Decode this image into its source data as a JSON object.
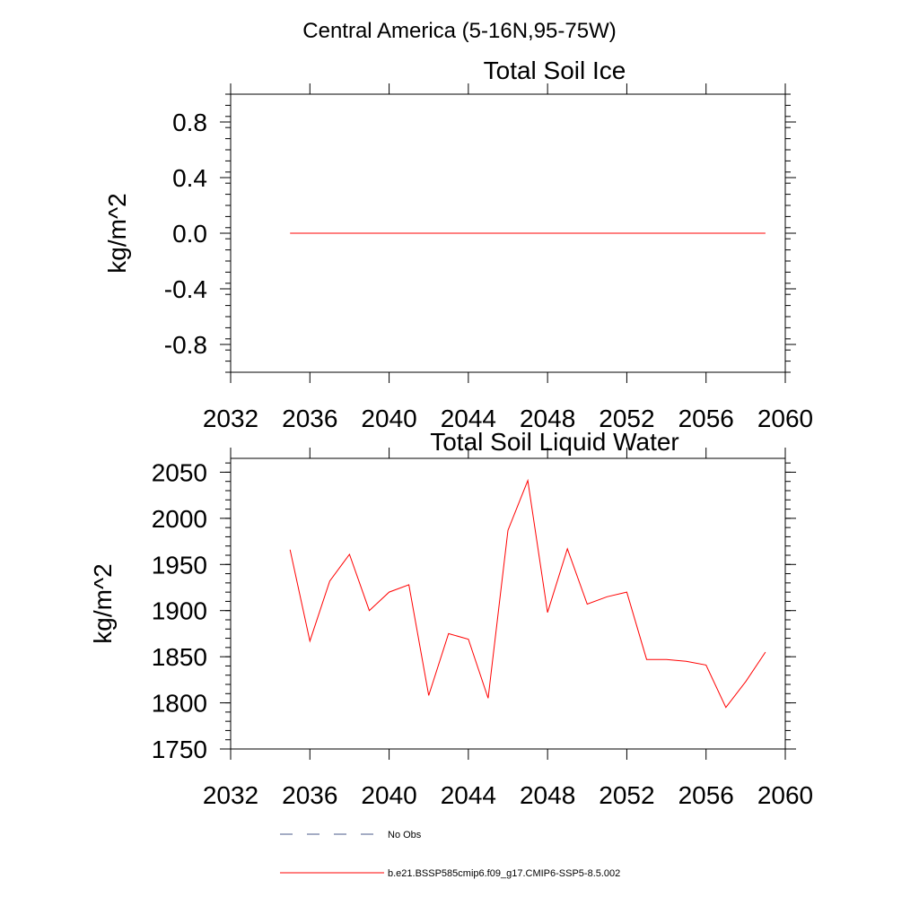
{
  "suptitle": "Central America (5-16N,95-75W)",
  "chart_data": [
    {
      "type": "line",
      "title": "Total Soil Ice",
      "xlabel": "",
      "ylabel": "kg/m^2",
      "xlim": [
        2032,
        2060
      ],
      "ylim": [
        -1.0,
        1.0
      ],
      "xticks": [
        2032,
        2036,
        2040,
        2044,
        2048,
        2052,
        2056,
        2060
      ],
      "xtick_labels": [
        "2032",
        "2036",
        "2040",
        "2044",
        "2048",
        "2052",
        "2056",
        "2060"
      ],
      "yticks": [
        -0.8,
        -0.4,
        0.0,
        0.4,
        0.8
      ],
      "ytick_labels": [
        "-0.8",
        "-0.4",
        "0.0",
        "0.4",
        "0.8"
      ],
      "grid": false,
      "series": [
        {
          "name": "b.e21.BSSP585cmip6.f09_g17.CMIP6-SSP5-8.5.002",
          "color": "#ff0000",
          "x": [
            2035,
            2036,
            2037,
            2038,
            2039,
            2040,
            2041,
            2042,
            2043,
            2044,
            2045,
            2046,
            2047,
            2048,
            2049,
            2050,
            2051,
            2052,
            2053,
            2054,
            2055,
            2056,
            2057,
            2058,
            2059
          ],
          "y": [
            0,
            0,
            0,
            0,
            0,
            0,
            0,
            0,
            0,
            0,
            0,
            0,
            0,
            0,
            0,
            0,
            0,
            0,
            0,
            0,
            0,
            0,
            0,
            0,
            0
          ]
        }
      ]
    },
    {
      "type": "line",
      "title": "Total Soil Liquid Water",
      "xlabel": "",
      "ylabel": "kg/m^2",
      "xlim": [
        2032,
        2060
      ],
      "ylim": [
        1750,
        2065
      ],
      "xticks": [
        2032,
        2036,
        2040,
        2044,
        2048,
        2052,
        2056,
        2060
      ],
      "xtick_labels": [
        "2032",
        "2036",
        "2040",
        "2044",
        "2048",
        "2052",
        "2056",
        "2060"
      ],
      "yticks": [
        1750,
        1800,
        1850,
        1900,
        1950,
        2000,
        2050
      ],
      "ytick_labels": [
        "1750",
        "1800",
        "1850",
        "1900",
        "1950",
        "2000",
        "2050"
      ],
      "grid": false,
      "series": [
        {
          "name": "b.e21.BSSP585cmip6.f09_g17.CMIP6-SSP5-8.5.002",
          "color": "#ff0000",
          "x": [
            2035,
            2036,
            2037,
            2038,
            2039,
            2040,
            2041,
            2042,
            2043,
            2044,
            2045,
            2046,
            2047,
            2048,
            2049,
            2050,
            2051,
            2052,
            2053,
            2054,
            2055,
            2056,
            2057,
            2058,
            2059
          ],
          "y": [
            1966,
            1867,
            1932,
            1961,
            1900,
            1920,
            1928,
            1808,
            1875,
            1869,
            1805,
            1987,
            2041,
            1898,
            1967,
            1907,
            1915,
            1920,
            1847,
            1847,
            1845,
            1841,
            1795,
            1823,
            1855
          ]
        }
      ]
    }
  ],
  "legend": [
    {
      "label": "No Obs",
      "color": "#4a5a8a",
      "style": "dashed"
    },
    {
      "label": "b.e21.BSSP585cmip6.f09_g17.CMIP6-SSP5-8.5.002",
      "color": "#ff0000",
      "style": "solid"
    }
  ]
}
